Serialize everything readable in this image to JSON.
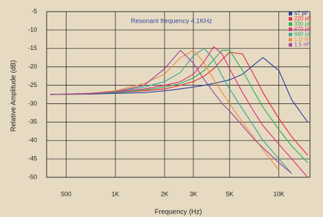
{
  "chart_data": {
    "type": "line",
    "annotation": "Resonant frequency   4.1KHz",
    "xlabel": "Frequency (Hz)",
    "ylabel": "Relative Amplitude (dB)",
    "xscale": "log",
    "grid": true,
    "xlim": [
      380,
      15500
    ],
    "ylim": [
      -50,
      -5
    ],
    "xticks": [
      500,
      {
        "value": 1000,
        "label": "1K"
      },
      {
        "value": 2000,
        "label": "2K"
      },
      {
        "value": 3000,
        "label": "3K"
      },
      {
        "value": 5000,
        "label": "5K"
      },
      {
        "value": 10000,
        "label": "10K"
      }
    ],
    "yticks": [
      -5,
      -10,
      -15,
      -20,
      -25,
      -30,
      -35,
      -40,
      -45,
      -50
    ],
    "x": [
      400,
      700,
      1000,
      1500,
      2000,
      2500,
      3000,
      3500,
      4000,
      4500,
      5000,
      6000,
      7000,
      8000,
      10000,
      12000,
      15000
    ],
    "series": [
      {
        "name": "47 pF",
        "color": "#2b3f9e",
        "values": [
          -27.5,
          -27.4,
          -27.2,
          -27,
          -26.5,
          -26,
          -25.5,
          -25,
          -24.5,
          -24,
          -23.5,
          -22,
          -19.5,
          -17.5,
          -21,
          -29,
          -35
        ]
      },
      {
        "name": "220 pF",
        "color": "#e0303a",
        "values": [
          -27.5,
          -27.3,
          -27,
          -26.5,
          -26,
          -25,
          -24,
          -22.5,
          -20.5,
          -18,
          -16,
          -16.5,
          -22,
          -27,
          -34,
          -39,
          -44
        ]
      },
      {
        "name": "330 pF",
        "color": "#2fae5a",
        "values": [
          -27.5,
          -27.3,
          -27,
          -26.3,
          -25.5,
          -24.5,
          -23,
          -21,
          -18,
          -15.5,
          -15.5,
          -21,
          -26.5,
          -31,
          -37,
          -41.5,
          -46
        ]
      },
      {
        "name": "470 pF",
        "color": "#e0307a",
        "values": [
          -27.5,
          -27.3,
          -26.8,
          -26,
          -25,
          -24,
          -22,
          -18.5,
          -14.5,
          -16.5,
          -20.5,
          -27,
          -32,
          -36,
          -41,
          -45,
          -50
        ]
      },
      {
        "name": "680 pF",
        "color": "#3aa88a",
        "values": [
          -27.5,
          -27.2,
          -26.7,
          -25.5,
          -24,
          -21.5,
          -17,
          -15,
          -18,
          -22.5,
          -26,
          -31.5,
          -36,
          -40,
          -45,
          -49,
          null
        ]
      },
      {
        "name": "1.0 nF",
        "color": "#f08a3a",
        "values": [
          -27.5,
          -27.2,
          -26.5,
          -24.5,
          -22,
          -17.5,
          -15.5,
          -19,
          -23.5,
          -27,
          -30,
          -35,
          -39,
          -42.5,
          -48,
          null,
          null
        ]
      },
      {
        "name": "1.5 nF",
        "color": "#9a4a9a",
        "values": [
          -27.5,
          -27.2,
          -26.8,
          -25,
          -20.5,
          -15.5,
          -19,
          -23.5,
          -27,
          -30,
          -32,
          -36,
          -39.5,
          -42,
          -46,
          -49,
          null
        ]
      }
    ]
  }
}
